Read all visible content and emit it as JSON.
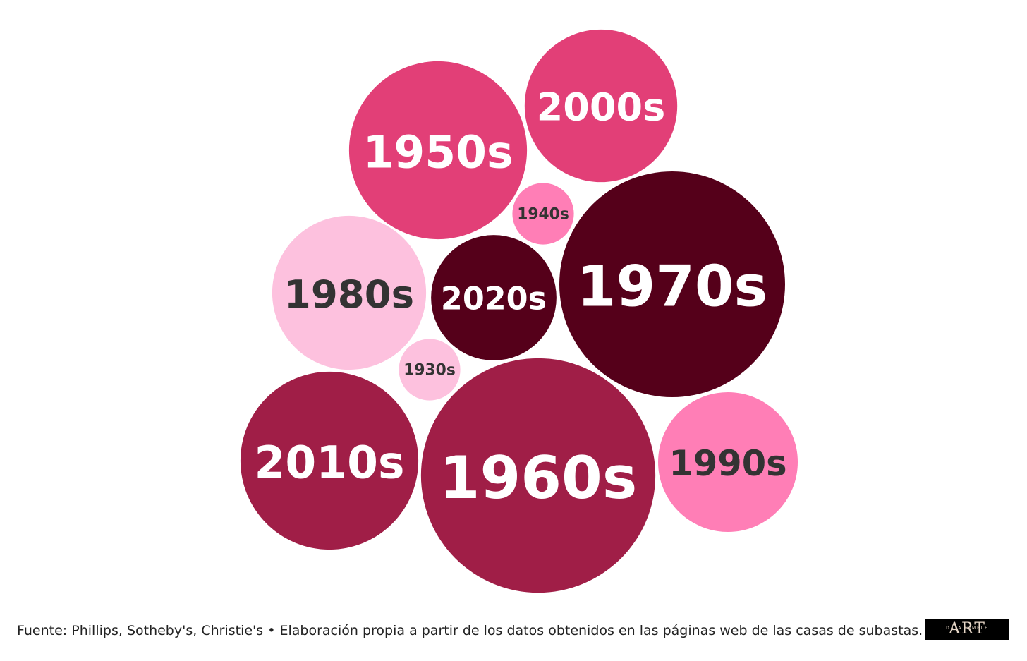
{
  "chart_data": {
    "type": "bubble",
    "categories": [
      "1950s",
      "2000s",
      "1940s",
      "1980s",
      "2020s",
      "1970s",
      "1930s",
      "2010s",
      "1960s",
      "1990s"
    ],
    "values": [
      159,
      117,
      19,
      119,
      79,
      256,
      19,
      159,
      276,
      98
    ],
    "colors": [
      "#e23f77",
      "#e23f77",
      "#ff7eb6",
      "#fdc1de",
      "#55001a",
      "#55001a",
      "#fdc1de",
      "#a01e47",
      "#a01e47",
      "#ff7eb6"
    ],
    "label_colors": [
      "#ffffff",
      "#ffffff",
      "#333333",
      "#333333",
      "#ffffff",
      "#ffffff",
      "#333333",
      "#ffffff",
      "#ffffff",
      "#333333"
    ]
  },
  "footer": {
    "prefix": "Fuente:",
    "sources": [
      "Phillips",
      "Sotheby's",
      "Christie's"
    ],
    "separator": ",",
    "note": "• Elaboración propia a partir de los datos obtenidos en las páginas web de las casas de subastas."
  },
  "logo": {
    "title": "ART",
    "subtitle": "DATA SIMPLE"
  }
}
